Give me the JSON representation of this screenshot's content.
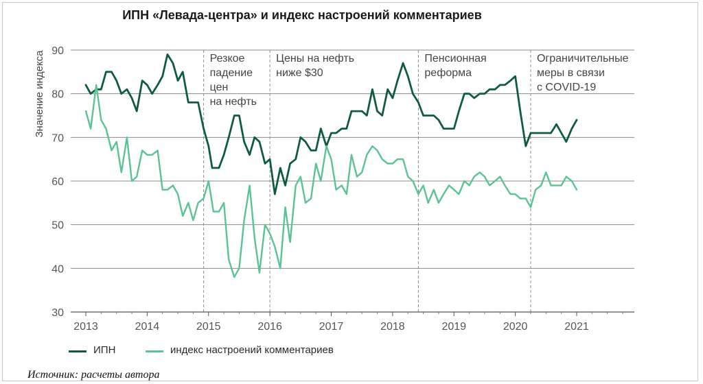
{
  "chart_data": {
    "type": "line",
    "title": "ИПН «Левада-центра»  и индекс настроений комментариев",
    "ylabel": "Значение индекса",
    "xlabel": "",
    "ylim": [
      30,
      90
    ],
    "xlim": [
      2012.8,
      2021.9
    ],
    "y_ticks": [
      30,
      40,
      50,
      60,
      70,
      80,
      90
    ],
    "x_ticks": [
      "2013",
      "2014",
      "2015",
      "2016",
      "2017",
      "2018",
      "2019",
      "2020",
      "2021"
    ],
    "grid": "horizontal",
    "legend_position": "bottom-left",
    "annotations": [
      {
        "x": 2014.92,
        "lines": [
          "Резкое",
          "падение",
          "цен",
          "на нефть"
        ]
      },
      {
        "x": 2016.0,
        "lines": [
          "Цены на нефть",
          "ниже $30"
        ]
      },
      {
        "x": 2018.42,
        "lines": [
          "Пенсионная",
          "реформа"
        ]
      },
      {
        "x": 2020.25,
        "lines": [
          "Ограничительные",
          "меры в связи",
          "с COVID-19"
        ]
      }
    ],
    "series": [
      {
        "name": "ИПН",
        "color": "#0f5a44",
        "points": [
          [
            2013.0,
            82
          ],
          [
            2013.08,
            80
          ],
          [
            2013.17,
            81
          ],
          [
            2013.25,
            81
          ],
          [
            2013.33,
            85
          ],
          [
            2013.42,
            85
          ],
          [
            2013.5,
            83
          ],
          [
            2013.58,
            80
          ],
          [
            2013.67,
            81
          ],
          [
            2013.75,
            79
          ],
          [
            2013.83,
            76
          ],
          [
            2013.92,
            83
          ],
          [
            2014.0,
            82
          ],
          [
            2014.08,
            80
          ],
          [
            2014.17,
            82
          ],
          [
            2014.25,
            84
          ],
          [
            2014.33,
            89
          ],
          [
            2014.42,
            87
          ],
          [
            2014.5,
            83
          ],
          [
            2014.58,
            85
          ],
          [
            2014.67,
            78
          ],
          [
            2014.75,
            78
          ],
          [
            2014.83,
            78
          ],
          [
            2014.92,
            72
          ],
          [
            2015.0,
            68
          ],
          [
            2015.06,
            63
          ],
          [
            2015.17,
            63
          ],
          [
            2015.25,
            66
          ],
          [
            2015.33,
            70
          ],
          [
            2015.42,
            75
          ],
          [
            2015.5,
            75
          ],
          [
            2015.58,
            69
          ],
          [
            2015.67,
            66
          ],
          [
            2015.75,
            70
          ],
          [
            2015.83,
            69
          ],
          [
            2015.92,
            64
          ],
          [
            2016.0,
            65
          ],
          [
            2016.08,
            57
          ],
          [
            2016.17,
            63
          ],
          [
            2016.25,
            59
          ],
          [
            2016.33,
            64
          ],
          [
            2016.42,
            65
          ],
          [
            2016.5,
            70
          ],
          [
            2016.58,
            69
          ],
          [
            2016.67,
            67
          ],
          [
            2016.75,
            67
          ],
          [
            2016.83,
            72
          ],
          [
            2016.92,
            68
          ],
          [
            2017.0,
            71
          ],
          [
            2017.08,
            71
          ],
          [
            2017.17,
            72
          ],
          [
            2017.25,
            72
          ],
          [
            2017.33,
            76
          ],
          [
            2017.42,
            76
          ],
          [
            2017.5,
            76
          ],
          [
            2017.58,
            75
          ],
          [
            2017.67,
            81
          ],
          [
            2017.75,
            76
          ],
          [
            2017.83,
            75
          ],
          [
            2017.92,
            81
          ],
          [
            2018.0,
            79
          ],
          [
            2018.08,
            83
          ],
          [
            2018.17,
            87
          ],
          [
            2018.25,
            84
          ],
          [
            2018.33,
            80
          ],
          [
            2018.42,
            78
          ],
          [
            2018.5,
            75
          ],
          [
            2018.58,
            75
          ],
          [
            2018.67,
            75
          ],
          [
            2018.75,
            74
          ],
          [
            2018.83,
            72
          ],
          [
            2018.92,
            72
          ],
          [
            2019.0,
            72
          ],
          [
            2019.08,
            76
          ],
          [
            2019.17,
            80
          ],
          [
            2019.25,
            80
          ],
          [
            2019.33,
            79
          ],
          [
            2019.42,
            80
          ],
          [
            2019.5,
            80
          ],
          [
            2019.58,
            81
          ],
          [
            2019.67,
            81
          ],
          [
            2019.75,
            82
          ],
          [
            2019.83,
            82
          ],
          [
            2019.92,
            83
          ],
          [
            2020.0,
            84
          ],
          [
            2020.08,
            76
          ],
          [
            2020.17,
            68
          ],
          [
            2020.25,
            71
          ],
          [
            2020.33,
            71
          ],
          [
            2020.42,
            71
          ],
          [
            2020.5,
            71
          ],
          [
            2020.58,
            71
          ],
          [
            2020.67,
            73
          ],
          [
            2020.75,
            71
          ],
          [
            2020.83,
            69
          ],
          [
            2020.92,
            72
          ],
          [
            2021.0,
            74
          ]
        ]
      },
      {
        "name": "индекс настроений комментариев",
        "color": "#5ac394",
        "points": [
          [
            2013.0,
            76
          ],
          [
            2013.08,
            72
          ],
          [
            2013.17,
            82
          ],
          [
            2013.25,
            74
          ],
          [
            2013.33,
            72
          ],
          [
            2013.42,
            67
          ],
          [
            2013.5,
            69
          ],
          [
            2013.58,
            62
          ],
          [
            2013.67,
            70
          ],
          [
            2013.75,
            60
          ],
          [
            2013.83,
            61
          ],
          [
            2013.92,
            67
          ],
          [
            2014.0,
            66
          ],
          [
            2014.08,
            66
          ],
          [
            2014.17,
            67
          ],
          [
            2014.25,
            58
          ],
          [
            2014.33,
            58
          ],
          [
            2014.42,
            59
          ],
          [
            2014.5,
            57
          ],
          [
            2014.58,
            52
          ],
          [
            2014.67,
            55
          ],
          [
            2014.75,
            51
          ],
          [
            2014.83,
            55
          ],
          [
            2014.92,
            56
          ],
          [
            2015.0,
            60
          ],
          [
            2015.08,
            53
          ],
          [
            2015.17,
            53
          ],
          [
            2015.25,
            55
          ],
          [
            2015.33,
            42
          ],
          [
            2015.42,
            38
          ],
          [
            2015.5,
            40
          ],
          [
            2015.58,
            51
          ],
          [
            2015.67,
            59
          ],
          [
            2015.75,
            47
          ],
          [
            2015.83,
            39
          ],
          [
            2015.92,
            50
          ],
          [
            2016.0,
            48
          ],
          [
            2016.08,
            45
          ],
          [
            2016.17,
            40
          ],
          [
            2016.25,
            54
          ],
          [
            2016.33,
            46
          ],
          [
            2016.42,
            59
          ],
          [
            2016.5,
            61
          ],
          [
            2016.58,
            55
          ],
          [
            2016.67,
            56
          ],
          [
            2016.75,
            64
          ],
          [
            2016.83,
            60
          ],
          [
            2016.92,
            68
          ],
          [
            2017.0,
            65
          ],
          [
            2017.08,
            58
          ],
          [
            2017.17,
            59
          ],
          [
            2017.25,
            57
          ],
          [
            2017.33,
            66
          ],
          [
            2017.42,
            61
          ],
          [
            2017.5,
            62
          ],
          [
            2017.58,
            66
          ],
          [
            2017.67,
            68
          ],
          [
            2017.75,
            67
          ],
          [
            2017.83,
            65
          ],
          [
            2017.92,
            64
          ],
          [
            2018.0,
            64
          ],
          [
            2018.08,
            65
          ],
          [
            2018.17,
            65
          ],
          [
            2018.25,
            61
          ],
          [
            2018.33,
            60
          ],
          [
            2018.42,
            57
          ],
          [
            2018.5,
            59
          ],
          [
            2018.58,
            55
          ],
          [
            2018.67,
            58
          ],
          [
            2018.75,
            55
          ],
          [
            2018.83,
            57
          ],
          [
            2018.92,
            59
          ],
          [
            2019.0,
            58
          ],
          [
            2019.08,
            57
          ],
          [
            2019.17,
            60
          ],
          [
            2019.25,
            59
          ],
          [
            2019.33,
            61
          ],
          [
            2019.42,
            62
          ],
          [
            2019.5,
            61
          ],
          [
            2019.58,
            59
          ],
          [
            2019.67,
            60
          ],
          [
            2019.75,
            61
          ],
          [
            2019.83,
            59
          ],
          [
            2019.92,
            57
          ],
          [
            2020.0,
            57
          ],
          [
            2020.08,
            56
          ],
          [
            2020.17,
            56
          ],
          [
            2020.25,
            54
          ],
          [
            2020.33,
            58
          ],
          [
            2020.42,
            59
          ],
          [
            2020.5,
            62
          ],
          [
            2020.58,
            59
          ],
          [
            2020.67,
            59
          ],
          [
            2020.75,
            59
          ],
          [
            2020.83,
            61
          ],
          [
            2020.92,
            60
          ],
          [
            2021.0,
            58
          ]
        ]
      }
    ]
  },
  "source": "Источник: расчеты автора"
}
